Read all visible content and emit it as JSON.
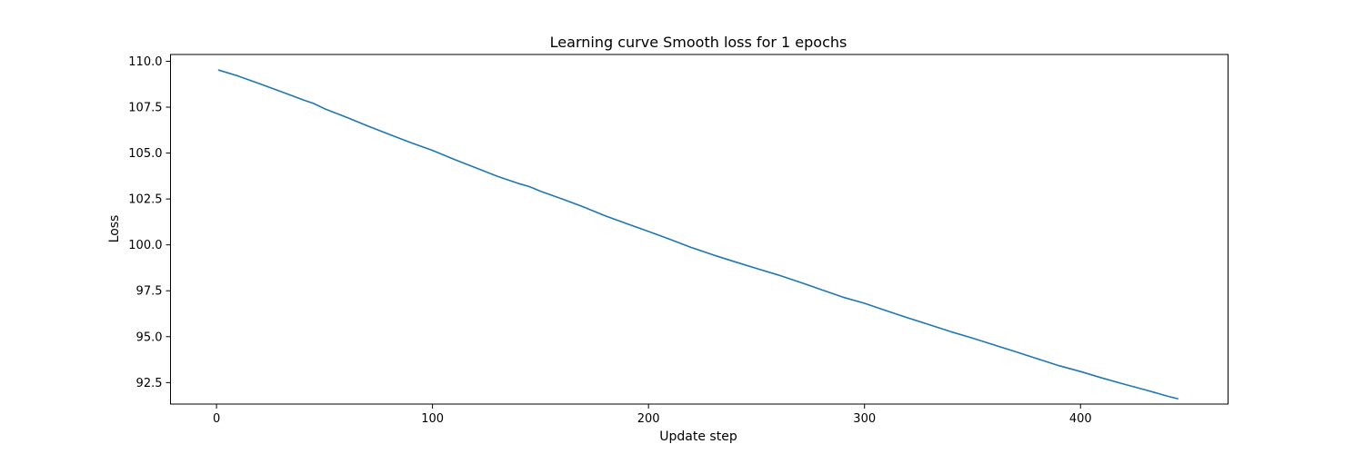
{
  "chart_data": {
    "type": "line",
    "title": "Learning curve Smooth loss for 1 epochs",
    "xlabel": "Update step",
    "ylabel": "Loss",
    "xlim": [
      -21.3,
      468.3
    ],
    "ylim": [
      91.33,
      110.37
    ],
    "xticks": [
      0,
      100,
      200,
      300,
      400
    ],
    "xtick_labels": [
      "0",
      "100",
      "200",
      "300",
      "400"
    ],
    "yticks": [
      92.5,
      95.0,
      97.5,
      100.0,
      102.5,
      105.0,
      107.5,
      110.0
    ],
    "ytick_labels": [
      "92.5",
      "95.0",
      "97.5",
      "100.0",
      "102.5",
      "105.0",
      "107.5",
      "110.0"
    ],
    "grid": false,
    "legend": "none",
    "series": [
      {
        "color": "#1f77b4",
        "x": [
          1,
          10,
          20,
          30,
          40,
          45,
          50,
          60,
          70,
          80,
          90,
          100,
          110,
          120,
          130,
          140,
          145,
          150,
          160,
          170,
          180,
          190,
          200,
          210,
          220,
          230,
          240,
          250,
          260,
          270,
          280,
          290,
          300,
          310,
          320,
          330,
          340,
          350,
          360,
          370,
          380,
          390,
          400,
          410,
          420,
          430,
          440,
          445
        ],
        "y": [
          109.52,
          109.2,
          108.78,
          108.34,
          107.9,
          107.7,
          107.42,
          106.96,
          106.48,
          106.02,
          105.57,
          105.15,
          104.66,
          104.2,
          103.74,
          103.34,
          103.17,
          102.92,
          102.5,
          102.06,
          101.58,
          101.15,
          100.73,
          100.3,
          99.85,
          99.45,
          99.08,
          98.72,
          98.36,
          97.97,
          97.56,
          97.15,
          96.82,
          96.42,
          96.03,
          95.65,
          95.27,
          94.92,
          94.55,
          94.18,
          93.8,
          93.42,
          93.1,
          92.75,
          92.42,
          92.1,
          91.77,
          91.62
        ]
      }
    ]
  }
}
